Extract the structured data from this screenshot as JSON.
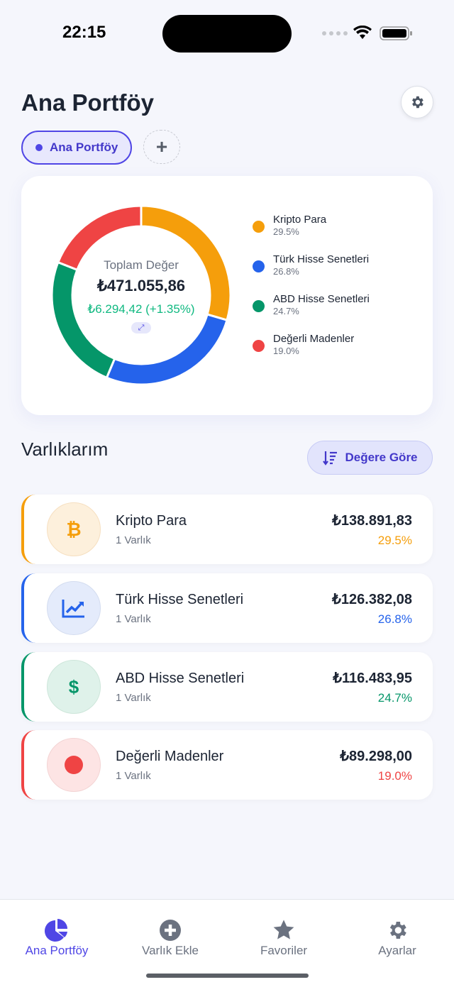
{
  "status": {
    "time": "22:15"
  },
  "header": {
    "title": "Ana Portföy"
  },
  "portfolio_chips": [
    {
      "label": "Ana Portföy",
      "active": true
    }
  ],
  "add_chip": "+",
  "summary": {
    "label": "Toplam Değer",
    "total": "₺471.055,86",
    "change": "₺6.294,42 (+1.35%)"
  },
  "chart_data": {
    "type": "pie",
    "categories": [
      "Kripto Para",
      "Türk Hisse Senetleri",
      "ABD Hisse Senetleri",
      "Değerli Madenler"
    ],
    "values": [
      29.5,
      26.8,
      24.7,
      19.0
    ],
    "colors": [
      "#f59e0b",
      "#2563eb",
      "#059669",
      "#ef4444"
    ]
  },
  "legend": [
    {
      "name": "Kripto Para",
      "pct": "29.5%"
    },
    {
      "name": "Türk Hisse Senetleri",
      "pct": "26.8%"
    },
    {
      "name": "ABD Hisse Senetleri",
      "pct": "24.7%"
    },
    {
      "name": "Değerli Madenler",
      "pct": "19.0%"
    }
  ],
  "assets": {
    "title": "Varlıklarım",
    "sort_label": "Değere Göre",
    "items": [
      {
        "name": "Kripto Para",
        "count": "1 Varlık",
        "value": "₺138.891,83",
        "pct": "29.5%",
        "color": "#f59e0b",
        "icon": "bitcoin-icon"
      },
      {
        "name": "Türk Hisse Senetleri",
        "count": "1 Varlık",
        "value": "₺126.382,08",
        "pct": "26.8%",
        "color": "#2563eb",
        "icon": "chart-line-icon"
      },
      {
        "name": "ABD Hisse Senetleri",
        "count": "1 Varlık",
        "value": "₺116.483,95",
        "pct": "24.7%",
        "color": "#059669",
        "icon": "dollar-icon"
      },
      {
        "name": "Değerli Madenler",
        "count": "1 Varlık",
        "value": "₺89.298,00",
        "pct": "19.0%",
        "color": "#ef4444",
        "icon": "circle-icon"
      }
    ]
  },
  "tabbar": {
    "items": [
      {
        "label": "Ana Portföy",
        "active": true
      },
      {
        "label": "Varlık Ekle"
      },
      {
        "label": "Favoriler"
      },
      {
        "label": "Ayarlar"
      }
    ]
  }
}
